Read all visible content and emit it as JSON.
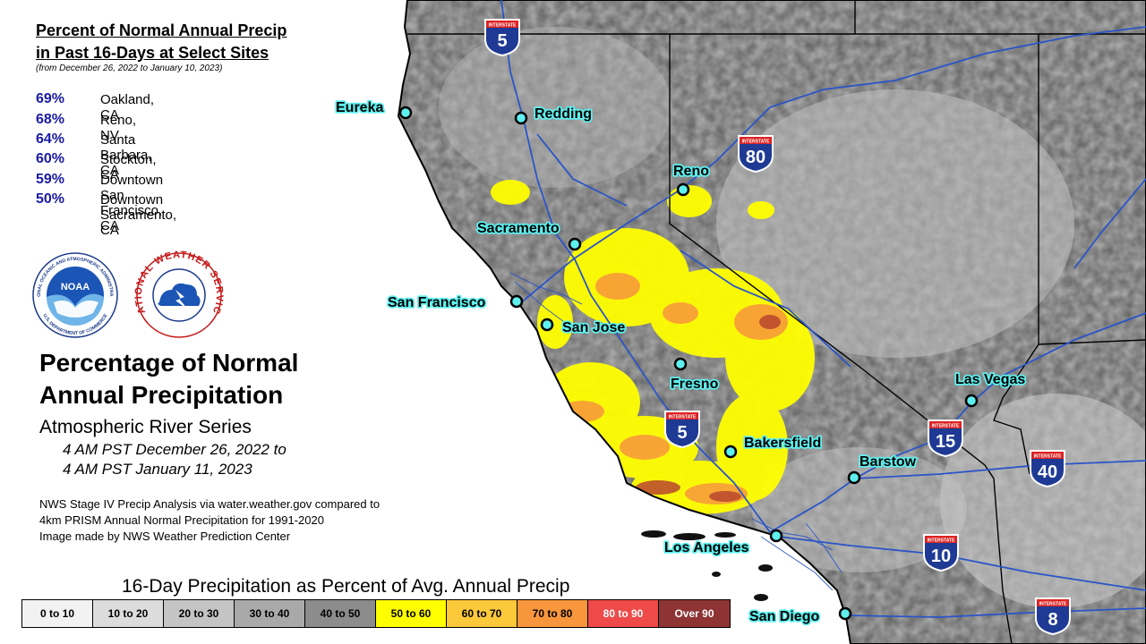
{
  "panel": {
    "title_line1": "Percent of Normal Annual Precip",
    "title_line2": "in Past 16-Days at Select Sites",
    "subtitle": "(from December 26, 2022 to January 10, 2023)",
    "sites": [
      {
        "pct": "69%",
        "name": "Oakland, CA"
      },
      {
        "pct": "68%",
        "name": "Reno, NV"
      },
      {
        "pct": "64%",
        "name": "Santa Barbara, CA"
      },
      {
        "pct": "60%",
        "name": "Stockton, CA"
      },
      {
        "pct": "59%",
        "name": "Downtown San Francisco, CA"
      },
      {
        "pct": "50%",
        "name": "Downtown Sacramento, CA"
      }
    ]
  },
  "logos": {
    "noaa_label": "NOAA",
    "nws_ring_text": "NATIONAL WEATHER SERVICE",
    "noaa_ring_text": "NATIONAL OCEANIC AND ATMOSPHERIC ADMINISTRATION",
    "noaa_ring_bottom": "U.S. DEPARTMENT OF COMMERCE"
  },
  "main": {
    "title_line1": "Percentage of Normal",
    "title_line2": "Annual Precipitation",
    "series": "Atmospheric River Series",
    "period_line1": "4 AM PST December 26, 2022 to",
    "period_line2": "4 AM PST January 11, 2023"
  },
  "notes": [
    "NWS Stage IV Precip Analysis via water.weather.gov compared to",
    "4km PRISM Annual Normal Precipitation for 1991-2020",
    "Image made by NWS Weather Prediction Center"
  ],
  "legend": {
    "title": "16-Day Precipitation as Percent of Avg. Annual Precip",
    "bins": [
      {
        "label": "0 to 10",
        "color": "#f2f2f2",
        "text": "#000000"
      },
      {
        "label": "10 to 20",
        "color": "#dcdcdc",
        "text": "#000000"
      },
      {
        "label": "20 to 30",
        "color": "#c4c4c4",
        "text": "#000000"
      },
      {
        "label": "30 to 40",
        "color": "#a9a9a9",
        "text": "#000000"
      },
      {
        "label": "40 to 50",
        "color": "#8c8c8c",
        "text": "#000000"
      },
      {
        "label": "50 to 60",
        "color": "#ffff00",
        "text": "#000000"
      },
      {
        "label": "60 to 70",
        "color": "#fbc93a",
        "text": "#000000"
      },
      {
        "label": "70 to 80",
        "color": "#f7963c",
        "text": "#000000"
      },
      {
        "label": "80 to 90",
        "color": "#ee4a4a",
        "text": "#ffffff"
      },
      {
        "label": "Over 90",
        "color": "#8e3434",
        "text": "#ffffff"
      }
    ]
  },
  "cities": [
    "Eureka",
    "Redding",
    "Reno",
    "Sacramento",
    "San Francisco",
    "San Jose",
    "Fresno",
    "Bakersfield",
    "Las Vegas",
    "Barstow",
    "Los Angeles",
    "San Diego"
  ],
  "interstates": {
    "shield_label": "INTERSTATE",
    "routes": [
      "5",
      "80",
      "5",
      "15",
      "40",
      "10",
      "8"
    ]
  },
  "colors": {
    "ocean": "#ffffff",
    "land": "#a6a6a6",
    "roads": "#2a55c8",
    "borders": "#000000",
    "city_glow": "#5ef0ef"
  }
}
